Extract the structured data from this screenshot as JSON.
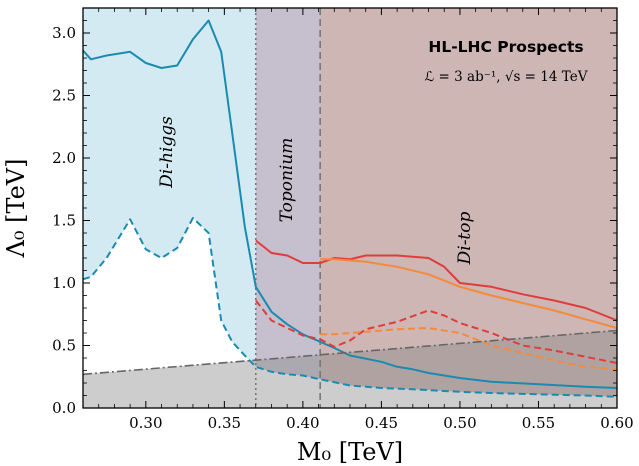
{
  "chart_data": {
    "type": "line",
    "title": "HL-LHC Prospects",
    "subtitle": "ℒ = 3 ab⁻¹,  √s = 14 TeV",
    "xlabel": "M₀ [TeV]",
    "ylabel": "Λ₀ [TeV]",
    "xlim": [
      0.26,
      0.6
    ],
    "ylim": [
      0.0,
      3.2
    ],
    "xticks": [
      "0.30",
      "0.35",
      "0.40",
      "0.45",
      "0.50",
      "0.55",
      "0.60"
    ],
    "yticks": [
      "0.0",
      "0.5",
      "1.0",
      "1.5",
      "2.0",
      "2.5",
      "3.0"
    ],
    "grid": false,
    "legend": "none",
    "regions": [
      {
        "label": "Di-higgs",
        "x_range": [
          0.26,
          0.6
        ],
        "color": "#a8d5e5"
      },
      {
        "label": "Toponium",
        "x_range": [
          0.37,
          0.411
        ],
        "color": "#b99ab0"
      },
      {
        "label": "Di-top",
        "x_range": [
          0.411,
          0.6
        ],
        "color": "#c98b80"
      }
    ],
    "vertical_lines": [
      {
        "x": 0.37,
        "style": "dotted",
        "color": "#777777"
      },
      {
        "x": 0.411,
        "style": "dashed",
        "color": "#777777"
      }
    ],
    "series": [
      {
        "color": "#1a8bb0",
        "style": "solid",
        "x": [
          0.26,
          0.265,
          0.275,
          0.29,
          0.3,
          0.31,
          0.32,
          0.33,
          0.34,
          0.348,
          0.355,
          0.363,
          0.37,
          0.38,
          0.39,
          0.4,
          0.411,
          0.42,
          0.43,
          0.45,
          0.46,
          0.47,
          0.48,
          0.5,
          0.52,
          0.55,
          0.58,
          0.6
        ],
        "y": [
          2.86,
          2.79,
          2.82,
          2.85,
          2.76,
          2.72,
          2.74,
          2.95,
          3.1,
          2.85,
          2.2,
          1.45,
          0.97,
          0.77,
          0.67,
          0.59,
          0.53,
          0.48,
          0.42,
          0.37,
          0.33,
          0.31,
          0.28,
          0.24,
          0.21,
          0.19,
          0.17,
          0.16
        ]
      },
      {
        "color": "#1a8bb0",
        "style": "dashed",
        "x": [
          0.26,
          0.265,
          0.275,
          0.29,
          0.3,
          0.31,
          0.32,
          0.33,
          0.34,
          0.348,
          0.355,
          0.363,
          0.37,
          0.38,
          0.39,
          0.4,
          0.411,
          0.43,
          0.45,
          0.47,
          0.5,
          0.52,
          0.55,
          0.58,
          0.6
        ],
        "y": [
          1.03,
          1.05,
          1.2,
          1.51,
          1.27,
          1.2,
          1.28,
          1.52,
          1.4,
          0.7,
          0.53,
          0.42,
          0.33,
          0.29,
          0.27,
          0.26,
          0.23,
          0.18,
          0.16,
          0.15,
          0.13,
          0.12,
          0.11,
          0.1,
          0.09
        ]
      },
      {
        "color": "#e03c3c",
        "style": "solid",
        "x": [
          0.37,
          0.38,
          0.39,
          0.4,
          0.411,
          0.42,
          0.43,
          0.44,
          0.46,
          0.48,
          0.49,
          0.5,
          0.52,
          0.54,
          0.56,
          0.58,
          0.6
        ],
        "y": [
          1.34,
          1.24,
          1.22,
          1.16,
          1.16,
          1.2,
          1.19,
          1.22,
          1.22,
          1.2,
          1.13,
          1.0,
          0.97,
          0.91,
          0.86,
          0.8,
          0.7
        ]
      },
      {
        "color": "#e03c3c",
        "style": "dashed",
        "x": [
          0.37,
          0.38,
          0.39,
          0.4,
          0.411,
          0.42,
          0.43,
          0.44,
          0.46,
          0.48,
          0.49,
          0.5,
          0.52,
          0.54,
          0.56,
          0.58,
          0.6
        ],
        "y": [
          0.86,
          0.7,
          0.64,
          0.58,
          0.55,
          0.49,
          0.54,
          0.63,
          0.69,
          0.78,
          0.74,
          0.68,
          0.6,
          0.5,
          0.46,
          0.41,
          0.36
        ]
      },
      {
        "color": "#f58a3a",
        "style": "solid",
        "x": [
          0.411,
          0.42,
          0.44,
          0.46,
          0.48,
          0.5,
          0.52,
          0.54,
          0.56,
          0.58,
          0.6
        ],
        "y": [
          1.19,
          1.19,
          1.17,
          1.13,
          1.07,
          0.97,
          0.9,
          0.84,
          0.78,
          0.71,
          0.64
        ]
      },
      {
        "color": "#f58a3a",
        "style": "dashed",
        "x": [
          0.411,
          0.42,
          0.44,
          0.46,
          0.48,
          0.5,
          0.52,
          0.54,
          0.56,
          0.58,
          0.6
        ],
        "y": [
          0.59,
          0.59,
          0.61,
          0.63,
          0.64,
          0.6,
          0.5,
          0.44,
          0.38,
          0.33,
          0.31
        ]
      },
      {
        "color": "#666666",
        "style": "dashdot",
        "x": [
          0.26,
          0.6
        ],
        "y": [
          0.27,
          0.62
        ]
      }
    ],
    "gray_band_below_line": {
      "color": "#888888",
      "x": [
        0.26,
        0.6
      ],
      "y_top": [
        0.27,
        0.62
      ]
    },
    "colors": {
      "blue": "#1a8bb0",
      "red": "#e03c3c",
      "orange": "#f58a3a",
      "gray": "#666666"
    }
  }
}
